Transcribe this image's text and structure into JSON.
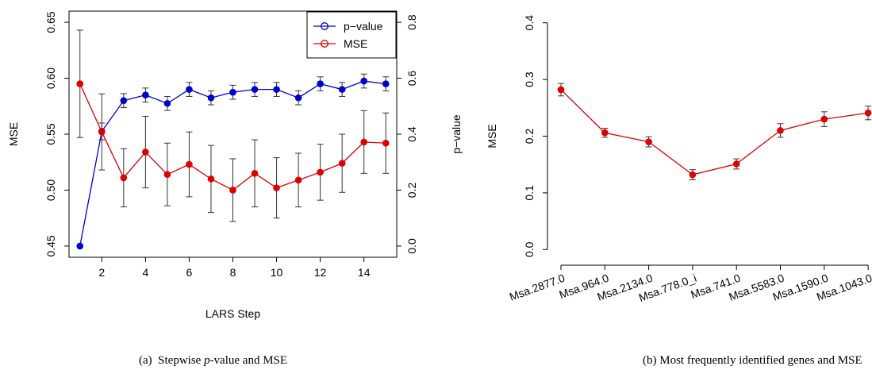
{
  "chart_data": [
    {
      "type": "line",
      "panel": "a",
      "xlabel": "LARS Step",
      "ylabel": "MSE",
      "y2label": "p−value",
      "xlim": [
        0.5,
        15.5
      ],
      "ylim": [
        0.44,
        0.66
      ],
      "y2lim": [
        -0.04,
        0.84
      ],
      "xticks": [
        2,
        4,
        6,
        8,
        10,
        12,
        14
      ],
      "yticks": [
        "0.45",
        "0.50",
        "0.55",
        "0.60",
        "0.65"
      ],
      "y2ticks": [
        "0.0",
        "0.2",
        "0.4",
        "0.6",
        "0.8"
      ],
      "legend_position": "top-right",
      "x": [
        1,
        2,
        3,
        4,
        5,
        6,
        7,
        8,
        9,
        10,
        11,
        12,
        13,
        14,
        15
      ],
      "series": [
        {
          "name": "p−value",
          "axis": "right",
          "color": "#0000cc",
          "values": [
            0.0,
            0.41,
            0.52,
            0.54,
            0.51,
            0.56,
            0.53,
            0.55,
            0.56,
            0.56,
            0.53,
            0.58,
            0.56,
            0.59,
            0.58
          ],
          "err": [
            0.0,
            0.03,
            0.025,
            0.025,
            0.025,
            0.025,
            0.025,
            0.025,
            0.025,
            0.025,
            0.025,
            0.025,
            0.025,
            0.025,
            0.025
          ]
        },
        {
          "name": "MSE",
          "axis": "left",
          "color": "#dd0000",
          "values": [
            0.595,
            0.552,
            0.511,
            0.534,
            0.514,
            0.523,
            0.51,
            0.5,
            0.515,
            0.502,
            0.509,
            0.516,
            0.524,
            0.543,
            0.542
          ],
          "err": [
            0.048,
            0.034,
            0.026,
            0.032,
            0.028,
            0.029,
            0.03,
            0.028,
            0.03,
            0.027,
            0.024,
            0.025,
            0.026,
            0.028,
            0.027
          ]
        }
      ]
    },
    {
      "type": "line",
      "panel": "b",
      "xlabel": "",
      "ylabel": "MSE",
      "ylim": [
        -0.015,
        0.415
      ],
      "yticks": [
        "0.0",
        "0.1",
        "0.2",
        "0.3",
        "0.4"
      ],
      "categories": [
        "Msa.2877.0",
        "Msa.964.0",
        "Msa.2134.0",
        "Msa.778.0_i",
        "Msa.741.0",
        "Msa.5583.0",
        "Msa.1590.0",
        "Msa.1043.0"
      ],
      "series": [
        {
          "color": "#dd0000",
          "values": [
            0.282,
            0.206,
            0.19,
            0.132,
            0.151,
            0.21,
            0.23,
            0.241
          ],
          "err": [
            0.011,
            0.008,
            0.009,
            0.009,
            0.009,
            0.012,
            0.013,
            0.012
          ]
        }
      ]
    }
  ],
  "captions": {
    "a_prefix": "(a)  Stepwise ",
    "a_italic": "p",
    "a_suffix": "-value and MSE",
    "b": "(b)  Most frequently identified genes and MSE"
  }
}
